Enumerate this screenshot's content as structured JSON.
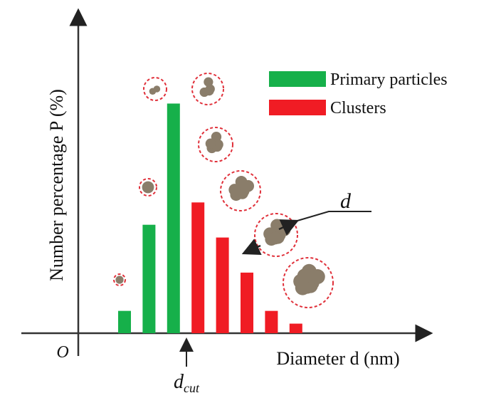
{
  "chart_data": {
    "type": "bar",
    "x_label": "Diameter d (nm)",
    "y_label": "Number percentage P (%)",
    "origin_label": "O",
    "categories": [
      null,
      null,
      null,
      null,
      null,
      null,
      null,
      null
    ],
    "series": [
      {
        "name": "Primary particles",
        "color": "#16b04a",
        "values": [
          7,
          34,
          72,
          null,
          null,
          null,
          null,
          null
        ]
      },
      {
        "name": "Clusters",
        "color": "#f01c24",
        "values": [
          null,
          null,
          null,
          41,
          30,
          19,
          7,
          3
        ]
      }
    ],
    "ylim": [
      0,
      100
    ],
    "annotations": [
      {
        "text": "d"
      },
      {
        "text": "d",
        "subscript": "cut"
      }
    ],
    "legend": "top-right"
  }
}
